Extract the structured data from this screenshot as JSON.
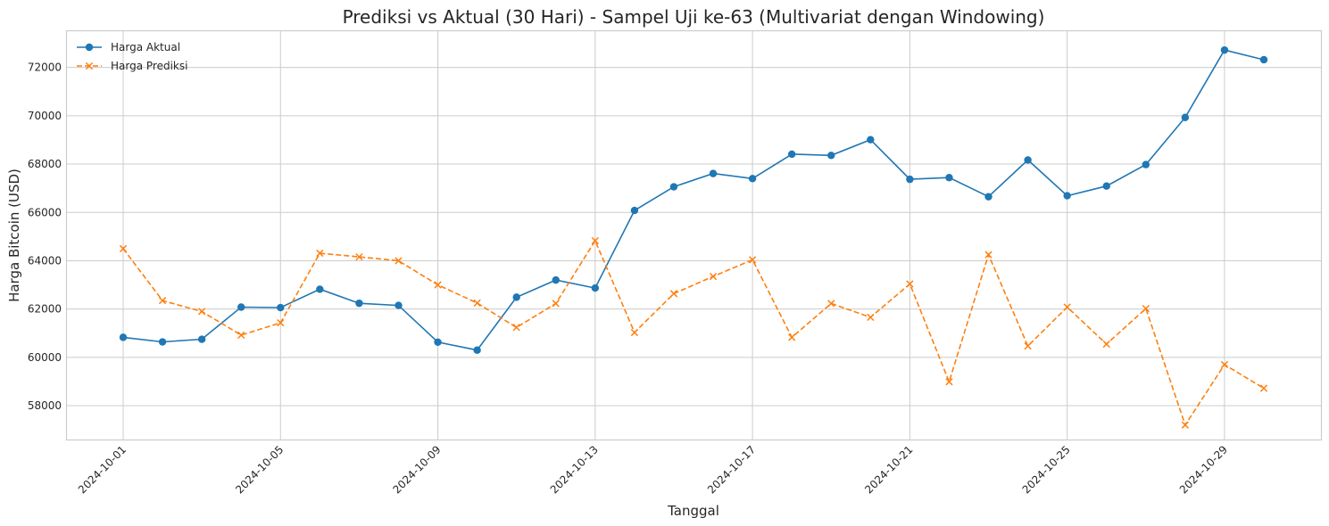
{
  "chart_data": {
    "type": "line",
    "title": "Prediksi vs Aktual (30 Hari) - Sampel Uji ke-63 (Multivariat dengan Windowing)",
    "xlabel": "Tanggal",
    "ylabel": "Harga Bitcoin (USD)",
    "x": [
      "2024-10-01",
      "2024-10-02",
      "2024-10-03",
      "2024-10-04",
      "2024-10-05",
      "2024-10-06",
      "2024-10-07",
      "2024-10-08",
      "2024-10-09",
      "2024-10-10",
      "2024-10-11",
      "2024-10-12",
      "2024-10-13",
      "2024-10-14",
      "2024-10-15",
      "2024-10-16",
      "2024-10-17",
      "2024-10-18",
      "2024-10-19",
      "2024-10-20",
      "2024-10-21",
      "2024-10-22",
      "2024-10-23",
      "2024-10-24",
      "2024-10-25",
      "2024-10-26",
      "2024-10-27",
      "2024-10-28",
      "2024-10-29",
      "2024-10-30"
    ],
    "xticks": [
      "2024-10-01",
      "2024-10-05",
      "2024-10-09",
      "2024-10-13",
      "2024-10-17",
      "2024-10-21",
      "2024-10-25",
      "2024-10-29"
    ],
    "ylim": [
      56600,
      73500
    ],
    "yticks": [
      58000,
      60000,
      62000,
      64000,
      66000,
      68000,
      70000,
      72000
    ],
    "grid": true,
    "legend_position": "top-left",
    "series": [
      {
        "name": "Harga Aktual",
        "color": "#1f77b4",
        "marker": "circle",
        "line_style": "solid",
        "values": [
          60830,
          60640,
          60750,
          62080,
          62060,
          62820,
          62240,
          62150,
          60630,
          60300,
          62490,
          63200,
          62870,
          66080,
          67060,
          67610,
          67400,
          68410,
          68360,
          69010,
          67370,
          67440,
          66650,
          68170,
          66690,
          67090,
          67980,
          69930,
          72720,
          72320
        ]
      },
      {
        "name": "Harga Prediksi",
        "color": "#ff7f0e",
        "marker": "x",
        "line_style": "dashed",
        "values": [
          64500,
          62350,
          61900,
          60920,
          61430,
          64310,
          64160,
          64000,
          63000,
          62250,
          61240,
          62230,
          64830,
          61030,
          62640,
          63350,
          64040,
          60830,
          62230,
          61660,
          63040,
          58990,
          64250,
          60470,
          62080,
          60550,
          62020,
          57200,
          59700,
          58720
        ]
      }
    ]
  }
}
